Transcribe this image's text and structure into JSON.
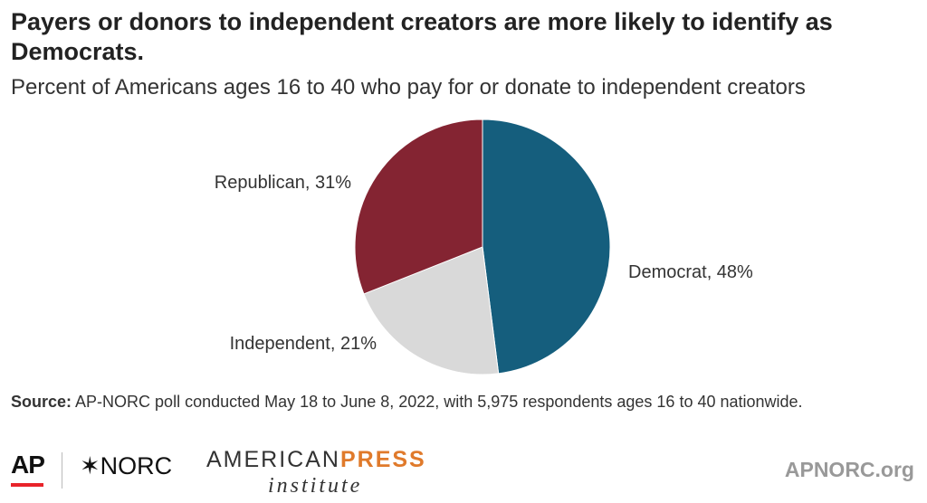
{
  "header": {
    "title": "Payers or donors to independent creators are more likely to identify as Democrats.",
    "subtitle": "Percent of Americans ages 16 to 40 who pay for or donate to independent creators"
  },
  "chart_data": {
    "type": "pie",
    "title": "Payers or donors to independent creators are more likely to identify as Democrats.",
    "subtitle": "Percent of Americans ages 16 to 40 who pay for or donate to independent creators",
    "slices": [
      {
        "label": "Democrat",
        "value": 48,
        "text": "Democrat, 48%",
        "color": "#155e7d"
      },
      {
        "label": "Independent",
        "value": 21,
        "text": "Independent, 21%",
        "color": "#d9d9d9"
      },
      {
        "label": "Republican",
        "value": 31,
        "text": "Republican, 31%",
        "color": "#842432"
      }
    ],
    "start": "12 o'clock",
    "direction": "clockwise"
  },
  "footer": {
    "source_label": "Source:",
    "source_text": " AP-NORC poll conducted May 18 to June 8, 2022, with 5,975 respondents ages 16 to 40 nationwide.",
    "logo_ap": "AP",
    "logo_norc": "✶NORC",
    "logo_american": "AMERICAN",
    "logo_press": "PRESS",
    "logo_institute": "institute",
    "site": "APNORC.org",
    "ap_red": "#e8232a",
    "press_orange": "#e07a2b"
  }
}
